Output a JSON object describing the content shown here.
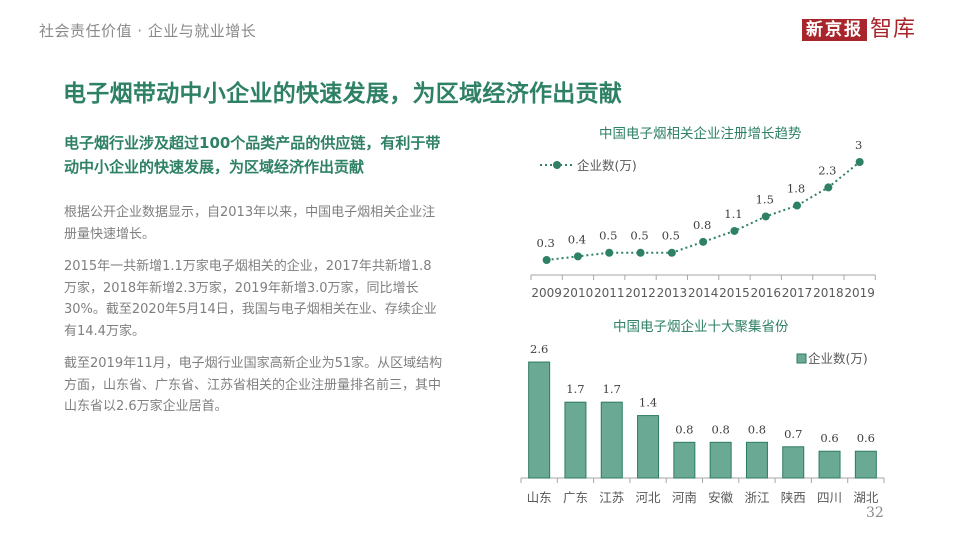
{
  "header": {
    "breadcrumb": "社会责任价值 · 企业与就业增长",
    "logo_box": "新京报",
    "logo_text": "智库"
  },
  "main": {
    "title": "电子烟带动中小企业的快速发展，为区域经济作出贡献",
    "subtitle": "电子烟行业涉及超过100个品类产品的供应链，有利于带动中小企业的快速发展，为区域经济作出贡献",
    "paragraphs": [
      "根据公开企业数据显示，自2013年以来，中国电子烟相关企业注册量快速增长。",
      "2015年一共新增1.1万家电子烟相关的企业，2017年共新增1.8万家，2018年新增2.3万家，2019年新增3.0万家，同比增长30%。截至2020年5月14日，我国与电子烟相关在业、存续企业有14.4万家。",
      "截至2019年11月，电子烟行业国家高新企业为51家。从区域结构方面，山东省、广东省、江苏省相关的企业注册量排名前三，其中山东省以2.6万家企业居首。"
    ]
  },
  "colors": {
    "brand_green": "#2e8164",
    "bar_fill": "#6aa993",
    "bar_stroke": "#2e7d5f",
    "logo_red": "#a8262b"
  },
  "page_number": "32",
  "chart_data": [
    {
      "type": "line",
      "title": "中国电子烟相关企业注册增长趋势",
      "legend": "企业数(万)",
      "legend_position": "top-left",
      "categories": [
        "2009",
        "2010",
        "2011",
        "2012",
        "2013",
        "2014",
        "2015",
        "2016",
        "2017",
        "2018",
        "2019"
      ],
      "series": [
        {
          "name": "企业数(万)",
          "values": [
            0.3,
            0.4,
            0.5,
            0.5,
            0.5,
            0.8,
            1.1,
            1.5,
            1.8,
            2.3,
            3
          ]
        }
      ],
      "labels": [
        "0.3",
        "0.4",
        "0.5",
        "0.5",
        "0.5",
        "0.8",
        "1.1",
        "1.5",
        "1.8",
        "2.3",
        "3"
      ],
      "xlabel": "",
      "ylabel": "",
      "grid": false,
      "line_style": "dotted"
    },
    {
      "type": "bar",
      "title": "中国电子烟企业十大聚集省份",
      "legend": "企业数(万)",
      "legend_position": "top-right",
      "categories": [
        "山东",
        "广东",
        "江苏",
        "河北",
        "河南",
        "安徽",
        "浙江",
        "陕西",
        "四川",
        "湖北"
      ],
      "series": [
        {
          "name": "企业数(万)",
          "values": [
            2.6,
            1.7,
            1.7,
            1.4,
            0.8,
            0.8,
            0.8,
            0.7,
            0.6,
            0.6
          ]
        }
      ],
      "labels": [
        "2.6",
        "1.7",
        "1.7",
        "1.4",
        "0.8",
        "0.8",
        "0.8",
        "0.7",
        "0.6",
        "0.6"
      ],
      "xlabel": "",
      "ylabel": "",
      "grid": false
    }
  ]
}
